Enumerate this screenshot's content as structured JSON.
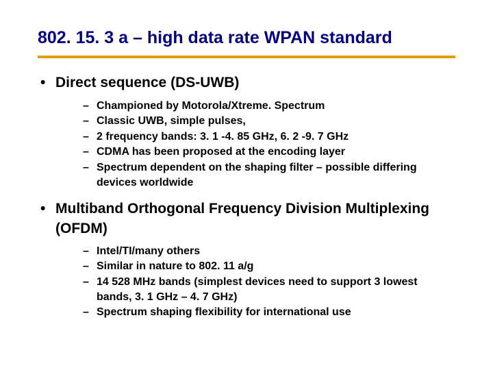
{
  "colors": {
    "title_color": "#000080",
    "rule_color": "#e0a000",
    "text_color": "#000000",
    "background": "#ffffff"
  },
  "title": "802. 15. 3 a – high data rate WPAN standard",
  "bullets": [
    {
      "text": "Direct sequence (DS-UWB)",
      "sub": [
        "Championed by Motorola/Xtreme. Spectrum",
        "Classic UWB, simple pulses,",
        "2 frequency bands: 3. 1 -4. 85 GHz, 6. 2 -9. 7 GHz",
        "CDMA has been proposed at the encoding layer",
        "Spectrum dependent on the shaping filter – possible differing devices worldwide"
      ]
    },
    {
      "text": "Multiband Orthogonal Frequency Division Multiplexing (OFDM)",
      "sub": [
        "Intel/TI/many others",
        "Similar in nature to 802. 11 a/g",
        "14  528 MHz bands (simplest devices need to support 3 lowest bands, 3. 1 GHz – 4. 7 GHz)",
        "Spectrum shaping flexibility for international use"
      ]
    }
  ]
}
